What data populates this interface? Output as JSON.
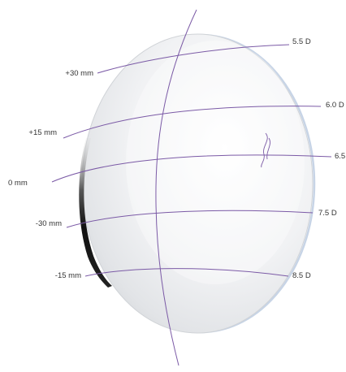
{
  "colors": {
    "curve": "#7b5aa6",
    "lens_edge": "#1a1a1a",
    "lens_fill": "#eef0f2",
    "label_text": "#333333"
  },
  "left_labels": [
    {
      "text": "+30 mm"
    },
    {
      "text": "+15 mm"
    },
    {
      "text": "0 mm"
    },
    {
      "text": "-30 mm"
    },
    {
      "text": "-15 mm"
    }
  ],
  "right_labels": [
    {
      "text": "5.5 D"
    },
    {
      "text": "6.0 D"
    },
    {
      "text": "6.5"
    },
    {
      "text": "7.5 D"
    },
    {
      "text": "8.5 D"
    }
  ]
}
